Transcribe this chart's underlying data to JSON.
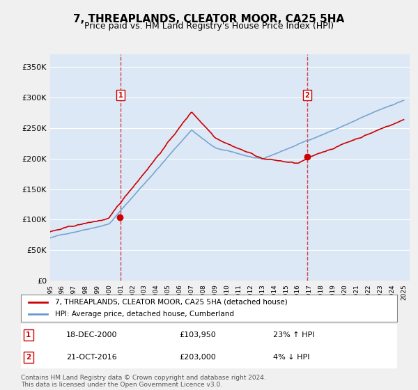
{
  "title": "7, THREAPLANDS, CLEATOR MOOR, CA25 5HA",
  "subtitle": "Price paid vs. HM Land Registry's House Price Index (HPI)",
  "bg_color": "#e8f0f8",
  "plot_bg_color": "#dce8f5",
  "grid_color": "#ffffff",
  "ylim": [
    0,
    370000
  ],
  "yticks": [
    0,
    50000,
    100000,
    150000,
    200000,
    250000,
    300000,
    350000
  ],
  "ytick_labels": [
    "£0",
    "£50K",
    "£100K",
    "£150K",
    "£200K",
    "£250K",
    "£300K",
    "£350K"
  ],
  "sale1_date_idx": 6.0,
  "sale1_price": 103950,
  "sale1_label": "18-DEC-2000",
  "sale1_pct": "23% ↑ HPI",
  "sale2_date_idx": 21.5,
  "sale2_price": 203000,
  "sale2_label": "21-OCT-2016",
  "sale2_pct": "4% ↓ HPI",
  "red_line_color": "#cc0000",
  "blue_line_color": "#6699cc",
  "marker_color_red": "#cc0000",
  "marker_color_blue": "#6699cc",
  "legend_label_red": "7, THREAPLANDS, CLEATOR MOOR, CA25 5HA (detached house)",
  "legend_label_blue": "HPI: Average price, detached house, Cumberland",
  "footer": "Contains HM Land Registry data © Crown copyright and database right 2024.\nThis data is licensed under the Open Government Licence v3.0.",
  "xstart_year": 1995,
  "xend_year": 2025
}
